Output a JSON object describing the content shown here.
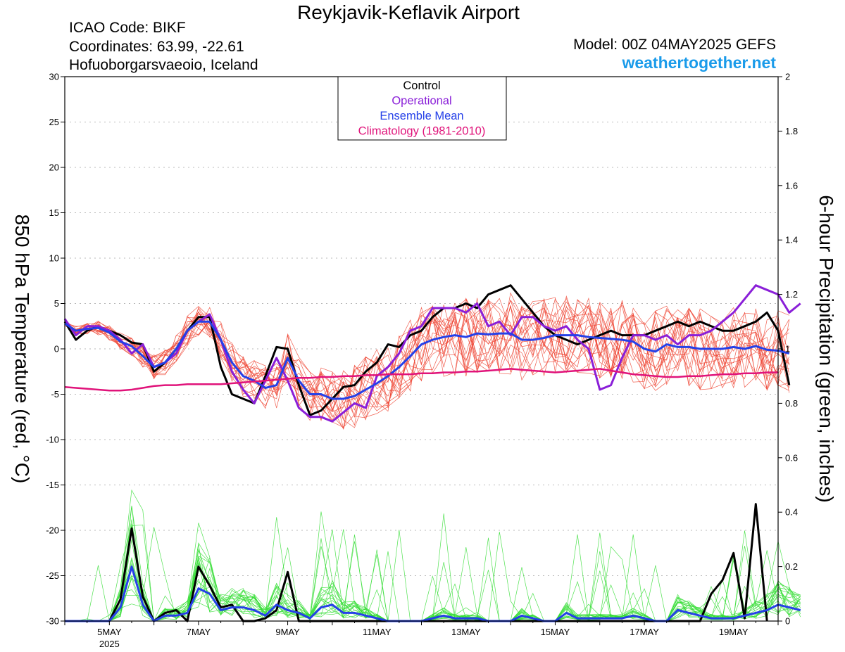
{
  "header": {
    "title": "Reykjavik-Keflavik Airport",
    "icao": "ICAO Code: BIKF",
    "coordinates": "Coordinates: 63.99, -22.61",
    "place": "Hofuoborgarsvaeoio, Iceland",
    "model": "Model: 00Z 04MAY2025 GEFS",
    "site": "weathertogether.net"
  },
  "chart_data": {
    "type": "line",
    "title": "Reykjavik-Keflavik Airport",
    "ylabel": "850 hPa Temperature (red, °C)",
    "y2label": "6-hour Precipitation (green, inches)",
    "ylim": [
      -30,
      30
    ],
    "y2lim": [
      0,
      2
    ],
    "xlim": [
      0,
      64
    ],
    "x_unit": "6-hour steps from 00Z 04 May 2025",
    "yticks": [
      "30",
      "25",
      "20",
      "15",
      "10",
      "5",
      "0",
      "-5",
      "-10",
      "-15",
      "-20",
      "-25",
      "-30"
    ],
    "y2ticks": [
      "2",
      "1.8",
      "1.6",
      "1.4",
      "1.2",
      "1",
      "0.8",
      "0.6",
      "0.4",
      "0.2",
      "0"
    ],
    "xticks": [
      {
        "x": 4,
        "label": "5MAY",
        "sub": "2025"
      },
      {
        "x": 12,
        "label": "7MAY"
      },
      {
        "x": 20,
        "label": "9MAY"
      },
      {
        "x": 28,
        "label": "11MAY"
      },
      {
        "x": 36,
        "label": "13MAY"
      },
      {
        "x": 44,
        "label": "15MAY"
      },
      {
        "x": 52,
        "label": "17MAY"
      },
      {
        "x": 60,
        "label": "19MAY"
      }
    ],
    "grid": true,
    "legend_position": "top-center",
    "legend": [
      {
        "label": "Control",
        "color": "#000000"
      },
      {
        "label": "Operational",
        "color": "#8a1fd8"
      },
      {
        "label": "Ensemble Mean",
        "color": "#2540e8"
      },
      {
        "label": "Climatology (1981-2010)",
        "color": "#e0137a"
      }
    ],
    "colors": {
      "members_temp": "#ee4433",
      "members_precip": "#33dd33"
    },
    "series": [
      {
        "name": "Control",
        "axis": "temp",
        "color": "#000000",
        "values": [
          3,
          1,
          2,
          2.5,
          2,
          1.5,
          0.7,
          0.5,
          -2.5,
          -1.5,
          0,
          2,
          3.5,
          3.5,
          -2,
          -5,
          -5.5,
          -6,
          -3,
          0.2,
          0,
          -4,
          -7.3,
          -6.8,
          -5.5,
          -4.2,
          -4,
          -2.5,
          -1.5,
          0.5,
          0.2,
          1.5,
          2,
          3.5,
          4.5,
          4.5,
          5,
          4.5,
          6,
          6.5,
          7,
          5.5,
          4,
          2.5,
          1.5,
          1,
          0.5,
          1,
          1.5,
          2,
          1.5,
          1.5,
          1.5,
          2,
          2.5,
          3,
          2.5,
          3,
          2.5,
          2,
          2,
          2.5,
          3,
          4,
          2,
          -4
        ]
      },
      {
        "name": "Operational",
        "axis": "temp",
        "color": "#8a1fd8",
        "values": [
          3.3,
          1.5,
          2.5,
          2.5,
          2,
          1,
          -0.5,
          0.5,
          -2,
          -1.5,
          -0.5,
          2,
          3,
          3.8,
          1,
          -2.5,
          -4.5,
          -6,
          -3.5,
          -1,
          -3.5,
          -6.5,
          -7.5,
          -7.5,
          -8,
          -7,
          -6,
          -6.5,
          -3,
          -2,
          -0.5,
          2,
          2.5,
          4.5,
          4.5,
          4.5,
          4,
          5,
          2.5,
          3,
          1.5,
          3.5,
          3.5,
          2.5,
          2,
          2.5,
          1,
          0,
          -4.5,
          -4,
          -1,
          1.5,
          1.5,
          1,
          1.5,
          0.5,
          1.5,
          1.5,
          2,
          3,
          4,
          5.5,
          7,
          6.5,
          6,
          4,
          5
        ]
      },
      {
        "name": "Ensemble Mean",
        "axis": "temp",
        "color": "#2540e8",
        "values": [
          2.8,
          2,
          2.2,
          2.3,
          1.8,
          0.8,
          0.3,
          -0.8,
          -2,
          -1.5,
          0,
          2,
          3,
          3,
          1,
          -1.5,
          -3,
          -3.5,
          -4.3,
          -4,
          -1,
          -3.5,
          -5,
          -5,
          -5.5,
          -5.5,
          -5.2,
          -4.5,
          -3.8,
          -3,
          -2,
          -0.8,
          0.5,
          1,
          1.3,
          1.5,
          1.3,
          1.7,
          1.6,
          1.7,
          1.7,
          1,
          1,
          1.2,
          1.5,
          1.5,
          1.5,
          1.3,
          1.2,
          1.1,
          1,
          0.8,
          0,
          -0.3,
          0.5,
          0.2,
          0.2,
          0,
          0,
          0,
          0.2,
          0,
          0.3,
          -0.1,
          -0.2,
          -0.5
        ]
      },
      {
        "name": "Climatology (1981-2010)",
        "axis": "temp",
        "color": "#e0137a",
        "values": [
          -4.2,
          -4.3,
          -4.4,
          -4.5,
          -4.6,
          -4.6,
          -4.5,
          -4.3,
          -4.1,
          -4.0,
          -4.0,
          -3.9,
          -3.9,
          -3.9,
          -3.9,
          -3.8,
          -3.7,
          -3.6,
          -3.5,
          -3.4,
          -3.3,
          -3.2,
          -3.2,
          -3.1,
          -3.1,
          -3.0,
          -3.0,
          -2.9,
          -2.9,
          -2.8,
          -2.8,
          -2.8,
          -2.7,
          -2.7,
          -2.6,
          -2.6,
          -2.5,
          -2.5,
          -2.4,
          -2.3,
          -2.2,
          -2.3,
          -2.4,
          -2.5,
          -2.6,
          -2.5,
          -2.4,
          -2.3,
          -2.2,
          -2.4,
          -2.6,
          -2.8,
          -2.9,
          -3.0,
          -3.1,
          -3.1,
          -3.0,
          -3.0,
          -2.9,
          -2.8,
          -2.8,
          -2.7,
          -2.7,
          -2.6,
          -2.6
        ]
      },
      {
        "name": "Control",
        "axis": "precip",
        "color": "#000000",
        "values": [
          0,
          0,
          0,
          0,
          0,
          0.08,
          0.34,
          0.09,
          0,
          0.03,
          0.04,
          0,
          0.2,
          0.13,
          0.05,
          0.06,
          0,
          0,
          0.01,
          0.04,
          0.18,
          0,
          0,
          0,
          0,
          0,
          0,
          0,
          0,
          0,
          0,
          0,
          0,
          0,
          0,
          0,
          0,
          0,
          0,
          0,
          0,
          0,
          0,
          0,
          0,
          0,
          0,
          0,
          0,
          0,
          0,
          0,
          0,
          0,
          0,
          0,
          0,
          0,
          0.1,
          0.15,
          0.25,
          0.01,
          0.43,
          0
        ]
      },
      {
        "name": "Ensemble Mean",
        "axis": "precip",
        "color": "#2540e8",
        "values": [
          0,
          0,
          0,
          0,
          0,
          0.05,
          0.2,
          0.06,
          0,
          0.02,
          0.02,
          0.03,
          0.12,
          0.1,
          0.04,
          0.05,
          0.05,
          0.04,
          0.02,
          0.06,
          0.04,
          0.03,
          0.01,
          0.05,
          0.06,
          0.03,
          0.03,
          0.02,
          0.01,
          0,
          0,
          0,
          0,
          0.01,
          0.02,
          0.01,
          0.01,
          0.01,
          0,
          0,
          0,
          0.02,
          0.01,
          0,
          0,
          0.03,
          0.01,
          0.01,
          0.01,
          0.01,
          0.01,
          0.02,
          0.01,
          0,
          0,
          0.04,
          0.03,
          0.02,
          0.01,
          0.01,
          0.01,
          0.02,
          0.03,
          0.04,
          0.06,
          0.05,
          0.04
        ]
      }
    ]
  }
}
